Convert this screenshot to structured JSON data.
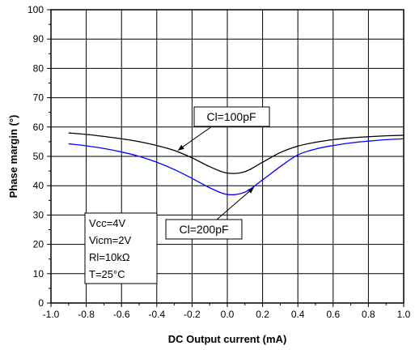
{
  "chart_data": {
    "type": "line",
    "xlabel": "DC Output current (mA)",
    "ylabel": "Phase margin (°)",
    "xlim": [
      -1.0,
      1.0
    ],
    "ylim": [
      0,
      100
    ],
    "x_ticks": [
      "-1.0",
      "-0.8",
      "-0.6",
      "-0.4",
      "-0.2",
      "0.0",
      "0.2",
      "0.4",
      "0.6",
      "0.8",
      "1.0"
    ],
    "y_ticks": [
      "0",
      "10",
      "20",
      "30",
      "40",
      "50",
      "60",
      "70",
      "80",
      "90",
      "100"
    ],
    "grid": true,
    "series": [
      {
        "name": "Cl=100pF",
        "color": "#000000",
        "points": [
          [
            -0.9,
            58.0
          ],
          [
            -0.8,
            57.5
          ],
          [
            -0.7,
            56.8
          ],
          [
            -0.6,
            56.0
          ],
          [
            -0.5,
            55.0
          ],
          [
            -0.4,
            53.7
          ],
          [
            -0.3,
            52.0
          ],
          [
            -0.2,
            49.5
          ],
          [
            -0.1,
            46.5
          ],
          [
            0.0,
            44.3
          ],
          [
            0.1,
            44.8
          ],
          [
            0.2,
            48.0
          ],
          [
            0.3,
            51.3
          ],
          [
            0.4,
            53.5
          ],
          [
            0.5,
            54.8
          ],
          [
            0.6,
            55.7
          ],
          [
            0.7,
            56.3
          ],
          [
            0.8,
            56.7
          ],
          [
            0.9,
            57.0
          ],
          [
            1.0,
            57.2
          ]
        ]
      },
      {
        "name": "Cl=200pF",
        "color": "#0000ff",
        "points": [
          [
            -0.9,
            54.3
          ],
          [
            -0.8,
            53.6
          ],
          [
            -0.7,
            52.7
          ],
          [
            -0.6,
            51.5
          ],
          [
            -0.5,
            50.0
          ],
          [
            -0.4,
            48.0
          ],
          [
            -0.3,
            45.5
          ],
          [
            -0.2,
            42.5
          ],
          [
            -0.1,
            39.3
          ],
          [
            0.0,
            37.0
          ],
          [
            0.1,
            37.8
          ],
          [
            0.2,
            42.0
          ],
          [
            0.3,
            46.5
          ],
          [
            0.4,
            50.5
          ],
          [
            0.5,
            52.5
          ],
          [
            0.6,
            53.7
          ],
          [
            0.7,
            54.6
          ],
          [
            0.8,
            55.2
          ],
          [
            0.9,
            55.7
          ],
          [
            1.0,
            56.0
          ]
        ]
      }
    ],
    "annotations": [
      {
        "text": "Cl=100pF",
        "series": 0,
        "target_x": -0.28
      },
      {
        "text": "Cl=200pF",
        "series": 1,
        "target_x": 0.15
      }
    ],
    "conditions": [
      "Vcc=4V",
      "Vicm=2V",
      "Rl=10kΩ",
      "T=25°C"
    ]
  }
}
